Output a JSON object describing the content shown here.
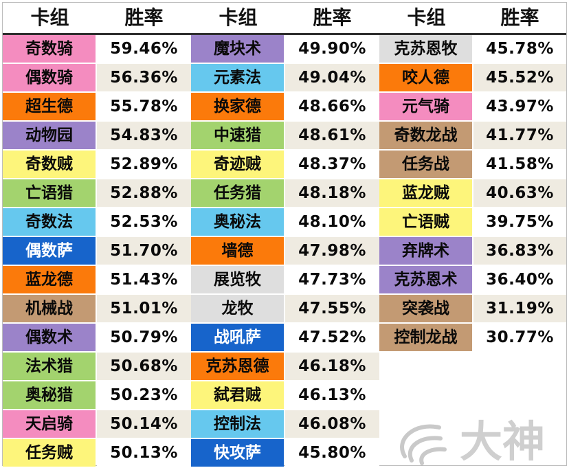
{
  "headers": [
    {
      "deck": "卡组",
      "rate": "胜率"
    },
    {
      "deck": "卡组",
      "rate": "胜率"
    },
    {
      "deck": "卡组",
      "rate": "胜率"
    }
  ],
  "columns": [
    [
      {
        "name": "奇数骑",
        "rate": "59.46%",
        "color": "#f48cbf"
      },
      {
        "name": "偶数骑",
        "rate": "56.36%",
        "color": "#f48cbf"
      },
      {
        "name": "超生德",
        "rate": "55.78%",
        "color": "#fb7a0b"
      },
      {
        "name": "动物园",
        "rate": "54.83%",
        "color": "#9b83c9"
      },
      {
        "name": "奇数贼",
        "rate": "52.89%",
        "color": "#fdf57b"
      },
      {
        "name": "亡语猎",
        "rate": "52.88%",
        "color": "#a3d36e"
      },
      {
        "name": "奇数法",
        "rate": "52.53%",
        "color": "#66c8ee"
      },
      {
        "name": "偶数萨",
        "rate": "51.70%",
        "color": "#1764cb"
      },
      {
        "name": "蓝龙德",
        "rate": "51.43%",
        "color": "#fb7a0b"
      },
      {
        "name": "机械战",
        "rate": "51.01%",
        "color": "#c39a73"
      },
      {
        "name": "偶数术",
        "rate": "50.79%",
        "color": "#9b83c9"
      },
      {
        "name": "法术猎",
        "rate": "50.68%",
        "color": "#a3d36e"
      },
      {
        "name": "奥秘猎",
        "rate": "50.23%",
        "color": "#a3d36e"
      },
      {
        "name": "天启骑",
        "rate": "50.14%",
        "color": "#f48cbf"
      },
      {
        "name": "任务贼",
        "rate": "50.13%",
        "color": "#fdf57b"
      }
    ],
    [
      {
        "name": "魔块术",
        "rate": "49.90%",
        "color": "#9b83c9"
      },
      {
        "name": "元素法",
        "rate": "49.04%",
        "color": "#66c8ee"
      },
      {
        "name": "换家德",
        "rate": "48.66%",
        "color": "#fb7a0b"
      },
      {
        "name": "中速猎",
        "rate": "48.61%",
        "color": "#a3d36e"
      },
      {
        "name": "奇迹贼",
        "rate": "48.37%",
        "color": "#fdf57b"
      },
      {
        "name": "任务猎",
        "rate": "48.18%",
        "color": "#a3d36e"
      },
      {
        "name": "奥秘法",
        "rate": "48.10%",
        "color": "#66c8ee"
      },
      {
        "name": "墙德",
        "rate": "47.98%",
        "color": "#fb7a0b"
      },
      {
        "name": "展览牧",
        "rate": "47.73%",
        "color": "#dedede"
      },
      {
        "name": "龙牧",
        "rate": "47.55%",
        "color": "#dedede"
      },
      {
        "name": "战吼萨",
        "rate": "47.52%",
        "color": "#1764cb"
      },
      {
        "name": "克苏恩德",
        "rate": "46.18%",
        "color": "#fb7a0b"
      },
      {
        "name": "弑君贼",
        "rate": "46.13%",
        "color": "#fdf57b"
      },
      {
        "name": "控制法",
        "rate": "46.08%",
        "color": "#66c8ee"
      },
      {
        "name": "快攻萨",
        "rate": "45.80%",
        "color": "#1764cb"
      }
    ],
    [
      {
        "name": "克苏恩牧",
        "rate": "45.78%",
        "color": "#dedede"
      },
      {
        "name": "咬人德",
        "rate": "45.52%",
        "color": "#fb7a0b"
      },
      {
        "name": "元气骑",
        "rate": "43.97%",
        "color": "#f48cbf"
      },
      {
        "name": "奇数龙战",
        "rate": "41.77%",
        "color": "#c39a73"
      },
      {
        "name": "任务战",
        "rate": "41.58%",
        "color": "#c39a73"
      },
      {
        "name": "蓝龙贼",
        "rate": "40.63%",
        "color": "#fdf57b"
      },
      {
        "name": "亡语贼",
        "rate": "39.75%",
        "color": "#fdf57b"
      },
      {
        "name": "弃牌术",
        "rate": "36.83%",
        "color": "#9b83c9"
      },
      {
        "name": "克苏恩术",
        "rate": "36.40%",
        "color": "#9b83c9"
      },
      {
        "name": "突袭战",
        "rate": "31.19%",
        "color": "#c39a73"
      },
      {
        "name": "控制龙战",
        "rate": "30.77%",
        "color": "#c39a73"
      }
    ]
  ],
  "logo": {
    "text": "大神",
    "icon": "netease-dashen-logo-icon"
  },
  "colors": {
    "rate_white": "#ffffff",
    "rate_beige": "#efebe1",
    "header_rule": "#2f2f2f",
    "dark_text_bg": "#1764cb"
  }
}
